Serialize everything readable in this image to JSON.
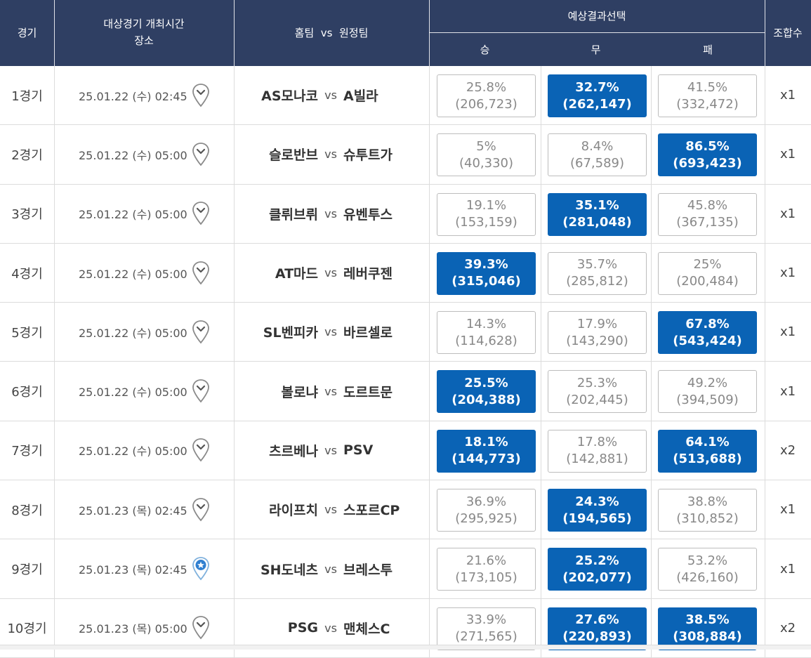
{
  "header": {
    "match_no": "경기",
    "time_label": "대상경기 개최시간",
    "venue_label": "장소",
    "teams_label": "홈팀  vs  원정팀",
    "prediction_label": "예상결과선택",
    "win_label": "승",
    "draw_label": "무",
    "lose_label": "패",
    "combo_label": "조합수"
  },
  "colors": {
    "header_bg": "#2f3f63",
    "selected": "#0a63b5"
  },
  "matches": [
    {
      "no": "1경기",
      "time": "25.01.22 (수) 02:45",
      "icon": "map-pin-icon",
      "home": "AS모나코",
      "vs": "vs",
      "away": "A빌라",
      "odds": [
        {
          "pct": "25.8%",
          "cnt": "(206,723)",
          "selected": false
        },
        {
          "pct": "32.7%",
          "cnt": "(262,147)",
          "selected": true
        },
        {
          "pct": "41.5%",
          "cnt": "(332,472)",
          "selected": false
        }
      ],
      "combo": "x1"
    },
    {
      "no": "2경기",
      "time": "25.01.22 (수) 05:00",
      "icon": "map-pin-icon",
      "home": "슬로반브",
      "vs": "vs",
      "away": "슈투트가",
      "odds": [
        {
          "pct": "5%",
          "cnt": "(40,330)",
          "selected": false
        },
        {
          "pct": "8.4%",
          "cnt": "(67,589)",
          "selected": false
        },
        {
          "pct": "86.5%",
          "cnt": "(693,423)",
          "selected": true
        }
      ],
      "combo": "x1"
    },
    {
      "no": "3경기",
      "time": "25.01.22 (수) 05:00",
      "icon": "map-pin-icon",
      "home": "클뤼브뤼",
      "vs": "vs",
      "away": "유벤투스",
      "odds": [
        {
          "pct": "19.1%",
          "cnt": "(153,159)",
          "selected": false
        },
        {
          "pct": "35.1%",
          "cnt": "(281,048)",
          "selected": true
        },
        {
          "pct": "45.8%",
          "cnt": "(367,135)",
          "selected": false
        }
      ],
      "combo": "x1"
    },
    {
      "no": "4경기",
      "time": "25.01.22 (수) 05:00",
      "icon": "map-pin-icon",
      "home": "AT마드",
      "vs": "vs",
      "away": "레버쿠젠",
      "odds": [
        {
          "pct": "39.3%",
          "cnt": "(315,046)",
          "selected": true
        },
        {
          "pct": "35.7%",
          "cnt": "(285,812)",
          "selected": false
        },
        {
          "pct": "25%",
          "cnt": "(200,484)",
          "selected": false
        }
      ],
      "combo": "x1"
    },
    {
      "no": "5경기",
      "time": "25.01.22 (수) 05:00",
      "icon": "map-pin-icon",
      "home": "SL벤피카",
      "vs": "vs",
      "away": "바르셀로",
      "odds": [
        {
          "pct": "14.3%",
          "cnt": "(114,628)",
          "selected": false
        },
        {
          "pct": "17.9%",
          "cnt": "(143,290)",
          "selected": false
        },
        {
          "pct": "67.8%",
          "cnt": "(543,424)",
          "selected": true
        }
      ],
      "combo": "x1"
    },
    {
      "no": "6경기",
      "time": "25.01.22 (수) 05:00",
      "icon": "map-pin-icon",
      "home": "볼로냐",
      "vs": "vs",
      "away": "도르트문",
      "odds": [
        {
          "pct": "25.5%",
          "cnt": "(204,388)",
          "selected": true
        },
        {
          "pct": "25.3%",
          "cnt": "(202,445)",
          "selected": false
        },
        {
          "pct": "49.2%",
          "cnt": "(394,509)",
          "selected": false
        }
      ],
      "combo": "x1"
    },
    {
      "no": "7경기",
      "time": "25.01.22 (수) 05:00",
      "icon": "map-pin-icon",
      "home": "츠르베나",
      "vs": "vs",
      "away": "PSV",
      "odds": [
        {
          "pct": "18.1%",
          "cnt": "(144,773)",
          "selected": true
        },
        {
          "pct": "17.8%",
          "cnt": "(142,881)",
          "selected": false
        },
        {
          "pct": "64.1%",
          "cnt": "(513,688)",
          "selected": true
        }
      ],
      "combo": "x2"
    },
    {
      "no": "8경기",
      "time": "25.01.23 (목) 02:45",
      "icon": "map-pin-icon",
      "home": "라이프치",
      "vs": "vs",
      "away": "스포르CP",
      "odds": [
        {
          "pct": "36.9%",
          "cnt": "(295,925)",
          "selected": false
        },
        {
          "pct": "24.3%",
          "cnt": "(194,565)",
          "selected": true
        },
        {
          "pct": "38.8%",
          "cnt": "(310,852)",
          "selected": false
        }
      ],
      "combo": "x1"
    },
    {
      "no": "9경기",
      "time": "25.01.23 (목) 02:45",
      "icon": "star-pin-icon",
      "home": "SH도네츠",
      "vs": "vs",
      "away": "브레스투",
      "odds": [
        {
          "pct": "21.6%",
          "cnt": "(173,105)",
          "selected": false
        },
        {
          "pct": "25.2%",
          "cnt": "(202,077)",
          "selected": true
        },
        {
          "pct": "53.2%",
          "cnt": "(426,160)",
          "selected": false
        }
      ],
      "combo": "x1"
    },
    {
      "no": "10경기",
      "time": "25.01.23 (목) 05:00",
      "icon": "map-pin-icon",
      "home": "PSG",
      "vs": "vs",
      "away": "맨체스C",
      "odds": [
        {
          "pct": "33.9%",
          "cnt": "(271,565)",
          "selected": false
        },
        {
          "pct": "27.6%",
          "cnt": "(220,893)",
          "selected": true
        },
        {
          "pct": "38.5%",
          "cnt": "(308,884)",
          "selected": true
        }
      ],
      "combo": "x2"
    }
  ]
}
